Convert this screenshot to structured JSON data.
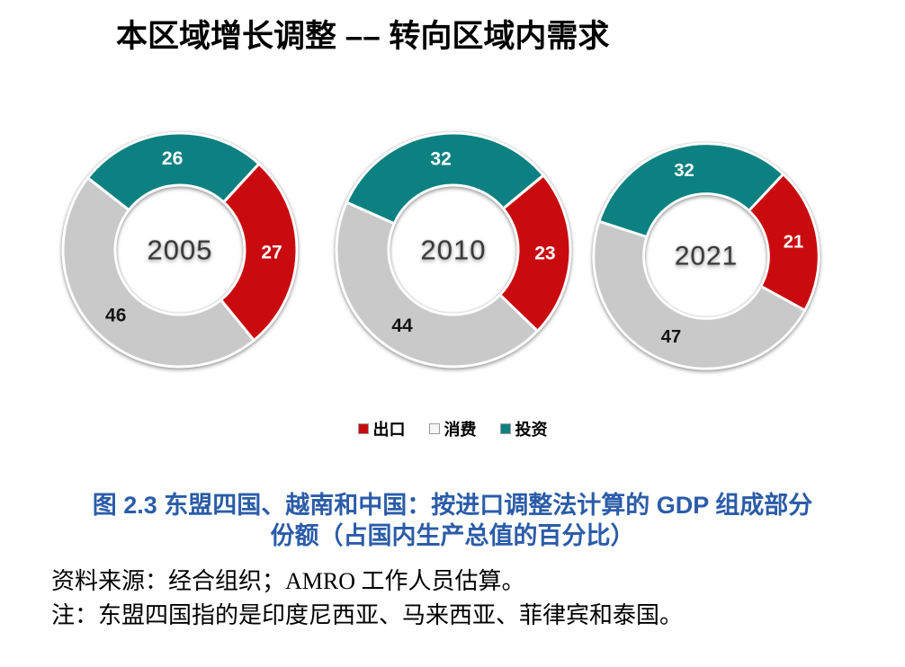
{
  "title": "本区域增长调整 –– 转向区域内需求",
  "chart_data": {
    "type": "pie",
    "subtype": "donut",
    "title": "本区域增长调整 –– 转向区域内需求",
    "unit": "占国内生产总值的百分比",
    "legend_position": "bottom",
    "categories": [
      "出口",
      "消费",
      "投资"
    ],
    "legend": [
      {
        "label": "出口",
        "fill": "#C90B0F",
        "border": "#9B9B9B"
      },
      {
        "label": "消费",
        "fill": "#F5F5F5",
        "border": "#9B9B9B"
      },
      {
        "label": "投资",
        "fill": "#0D8181",
        "border": "#9B9B9B"
      }
    ],
    "donuts": [
      {
        "year": "2005",
        "start_angle": -52,
        "segments": [
          {
            "key": "investment",
            "label": "投资",
            "value": 26,
            "color": "#0D8181",
            "label_color": "#FFFFFF"
          },
          {
            "key": "exports",
            "label": "出口",
            "value": 27,
            "color": "#C90B0F",
            "label_color": "#FFFFFF"
          },
          {
            "key": "consumption",
            "label": "消费",
            "value": 46,
            "color": "#C9C9C9",
            "label_color": "#141414"
          }
        ]
      },
      {
        "year": "2010",
        "start_angle": -66,
        "segments": [
          {
            "key": "investment",
            "label": "投资",
            "value": 32,
            "color": "#0D8181",
            "label_color": "#FFFFFF"
          },
          {
            "key": "exports",
            "label": "出口",
            "value": 23,
            "color": "#C90B0F",
            "label_color": "#FFFFFF"
          },
          {
            "key": "consumption",
            "label": "消费",
            "value": 44,
            "color": "#C9C9C9",
            "label_color": "#141414"
          }
        ]
      },
      {
        "year": "2021",
        "start_angle": -72,
        "segments": [
          {
            "key": "investment",
            "label": "投资",
            "value": 32,
            "color": "#0D8181",
            "label_color": "#FFFFFF"
          },
          {
            "key": "exports",
            "label": "出口",
            "value": 21,
            "color": "#C90B0F",
            "label_color": "#FFFFFF"
          },
          {
            "key": "consumption",
            "label": "消费",
            "value": 47,
            "color": "#C9C9C9",
            "label_color": "#141414"
          }
        ]
      }
    ]
  },
  "caption": {
    "line1": "图 2.3  东盟四国、越南和中国：按进口调整法计算的 GDP 组成部分",
    "line2": "份额（占国内生产总值的百分比）"
  },
  "notes": {
    "source": "资料来源：经合组织；AMRO 工作人员估算。",
    "note": "注：东盟四国指的是印度尼西亚、马来西亚、菲律宾和泰国。"
  }
}
